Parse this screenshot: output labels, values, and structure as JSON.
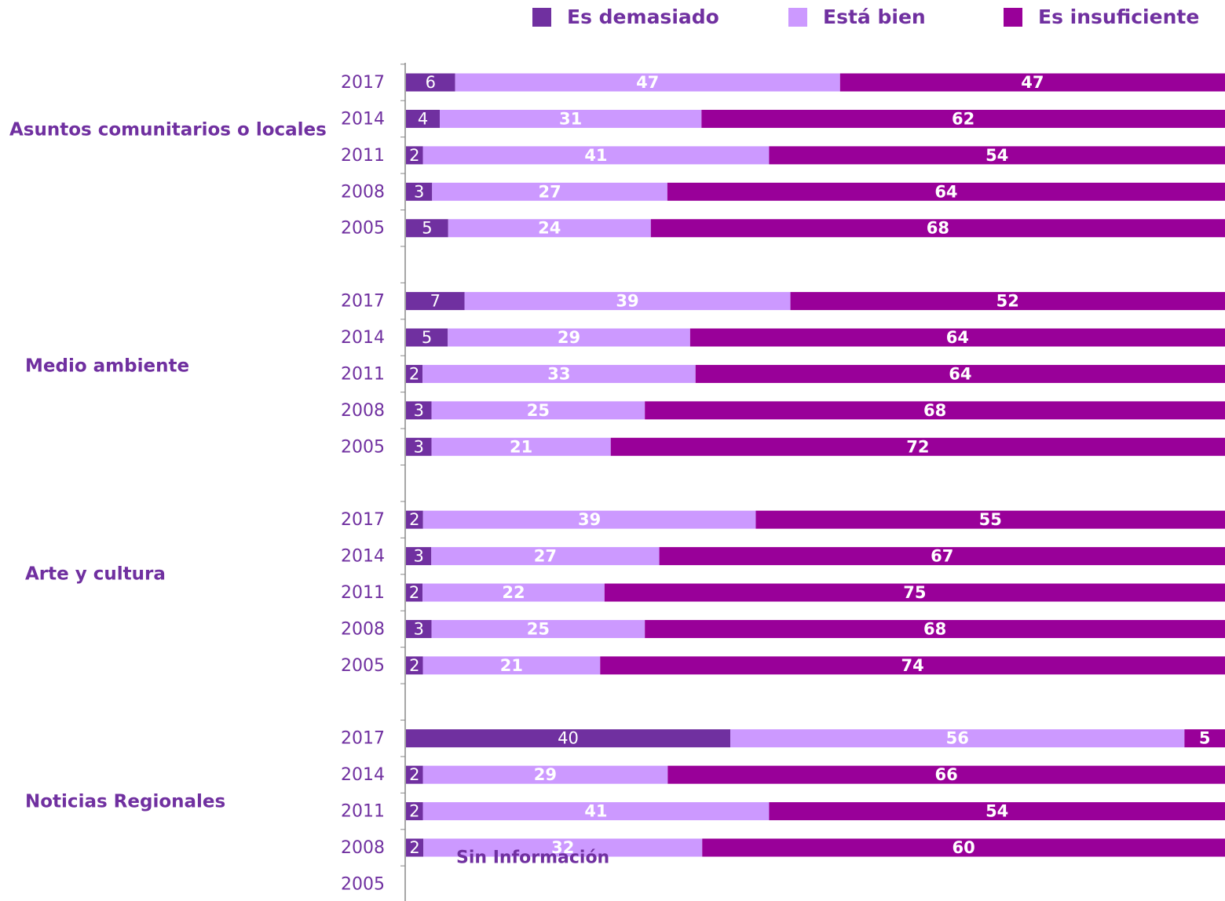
{
  "chart_data": {
    "type": "bar",
    "orientation": "horizontal",
    "stacked": "percent",
    "series": [
      {
        "name": "Es demasiado",
        "color": "#7030a0",
        "values": [
          [
            6,
            4,
            2,
            3,
            5
          ],
          [
            7,
            5,
            2,
            3,
            3
          ],
          [
            2,
            3,
            2,
            3,
            2
          ],
          [
            40,
            2,
            2,
            2,
            null
          ]
        ]
      },
      {
        "name": "Está bien",
        "color": "#cc99ff",
        "values": [
          [
            47,
            31,
            41,
            27,
            24
          ],
          [
            39,
            29,
            33,
            25,
            21
          ],
          [
            39,
            27,
            22,
            25,
            21
          ],
          [
            56,
            29,
            41,
            32,
            null
          ]
        ]
      },
      {
        "name": "Es insuficiente",
        "color": "#990099",
        "values": [
          [
            47,
            62,
            54,
            64,
            68
          ],
          [
            52,
            64,
            64,
            68,
            72
          ],
          [
            55,
            67,
            75,
            68,
            74
          ],
          [
            5,
            66,
            54,
            60,
            null
          ]
        ]
      }
    ],
    "groups": [
      {
        "name": "Asuntos comunitarios o locales",
        "categories": [
          "2017",
          "2014",
          "2011",
          "2008",
          "2005"
        ]
      },
      {
        "name": "Medio ambiente",
        "categories": [
          "2017",
          "2014",
          "2011",
          "2008",
          "2005"
        ]
      },
      {
        "name": "Arte y cultura",
        "categories": [
          "2017",
          "2014",
          "2011",
          "2008",
          "2005"
        ]
      },
      {
        "name": "Noticias Regionales",
        "categories": [
          "2017",
          "2014",
          "2011",
          "2008",
          "2005"
        ]
      }
    ],
    "annotation": "Sin Información",
    "legend": "top"
  }
}
